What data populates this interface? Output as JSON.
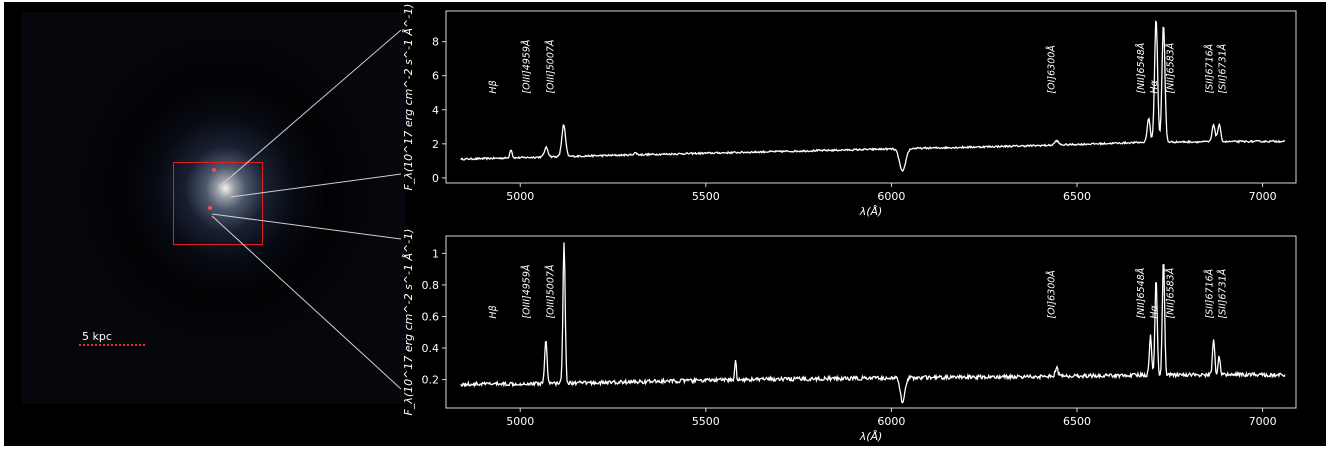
{
  "image": {
    "scale_label": "5 kpc"
  },
  "chart_data": [
    {
      "type": "line",
      "xlabel": "λ(Å)",
      "ylabel": "F_λ(10^17 erg cm^-2 s^-1 Å^-1)",
      "xlim": [
        4800,
        7090
      ],
      "ylim": [
        -0.3,
        9.8
      ],
      "xticks": [
        5000,
        5500,
        6000,
        6500,
        7000
      ],
      "yticks": [
        0,
        2,
        4,
        6,
        8
      ],
      "line_labels": [
        {
          "text": "Hβ",
          "x": 4935
        },
        {
          "text": "[OIII]4959Å",
          "x": 5025
        },
        {
          "text": "[OIII]5007Å",
          "x": 5090
        },
        {
          "text": "[OI]6300Å",
          "x": 6440
        },
        {
          "text": "[NII]6548Å",
          "x": 6680
        },
        {
          "text": "Hα",
          "x": 6715
        },
        {
          "text": "[NII]6583Å",
          "x": 6760
        },
        {
          "text": "[SII]6716Å",
          "x": 6865
        },
        {
          "text": "[SII]6731Å",
          "x": 6900
        }
      ],
      "continuum": [
        [
          4840,
          1.1
        ],
        [
          5200,
          1.3
        ],
        [
          5600,
          1.5
        ],
        [
          6000,
          1.7
        ],
        [
          6400,
          1.9
        ],
        [
          6700,
          2.1
        ],
        [
          7060,
          2.15
        ]
      ],
      "features": [
        {
          "x": 4975,
          "amp": 0.5,
          "width": 3
        },
        {
          "x": 5070,
          "amp": 0.55,
          "width": 5
        },
        {
          "x": 5117,
          "amp": 1.85,
          "width": 5
        },
        {
          "x": 5310,
          "amp": 0.12,
          "width": 4
        },
        {
          "x": 6030,
          "amp": -1.35,
          "width": 8
        },
        {
          "x": 6445,
          "amp": 0.25,
          "width": 5
        },
        {
          "x": 6693,
          "amp": 1.4,
          "width": 4
        },
        {
          "x": 6713,
          "amp": 7.3,
          "width": 4
        },
        {
          "x": 6733,
          "amp": 6.9,
          "width": 4
        },
        {
          "x": 6868,
          "amp": 1.0,
          "width": 4
        },
        {
          "x": 6883,
          "amp": 1.0,
          "width": 4
        }
      ],
      "noise": 0.05
    },
    {
      "type": "line",
      "xlabel": "λ(Å)",
      "ylabel": "F_λ(10^17 erg cm^-2 s^-1 Å^-1)",
      "xlim": [
        4800,
        7090
      ],
      "ylim": [
        0.02,
        1.11
      ],
      "xticks": [
        5000,
        5500,
        6000,
        6500,
        7000
      ],
      "yticks": [
        0.2,
        0.4,
        0.6,
        0.8,
        1.0
      ],
      "line_labels": [
        {
          "text": "Hβ",
          "x": 4935
        },
        {
          "text": "[OIII]4959Å",
          "x": 5025
        },
        {
          "text": "[OIII]5007Å",
          "x": 5090
        },
        {
          "text": "[OI]6300Å",
          "x": 6440
        },
        {
          "text": "[NII]6548Å",
          "x": 6680
        },
        {
          "text": "Hα",
          "x": 6715
        },
        {
          "text": "[NII]6583Å",
          "x": 6760
        },
        {
          "text": "[SII]6716Å",
          "x": 6865
        },
        {
          "text": "[SII]6731Å",
          "x": 6900
        }
      ],
      "continuum": [
        [
          4840,
          0.17
        ],
        [
          5200,
          0.18
        ],
        [
          5600,
          0.2
        ],
        [
          6000,
          0.21
        ],
        [
          6400,
          0.22
        ],
        [
          6700,
          0.23
        ],
        [
          7060,
          0.23
        ]
      ],
      "features": [
        {
          "x": 5069,
          "amp": 0.29,
          "width": 3
        },
        {
          "x": 5118,
          "amp": 0.9,
          "width": 3
        },
        {
          "x": 5580,
          "amp": 0.13,
          "width": 2
        },
        {
          "x": 6030,
          "amp": -0.15,
          "width": 6
        },
        {
          "x": 6445,
          "amp": 0.05,
          "width": 4
        },
        {
          "x": 6698,
          "amp": 0.25,
          "width": 3
        },
        {
          "x": 6713,
          "amp": 0.62,
          "width": 3
        },
        {
          "x": 6733,
          "amp": 0.74,
          "width": 3
        },
        {
          "x": 6868,
          "amp": 0.23,
          "width": 3
        },
        {
          "x": 6883,
          "amp": 0.12,
          "width": 3
        }
      ],
      "noise": 0.012
    }
  ]
}
